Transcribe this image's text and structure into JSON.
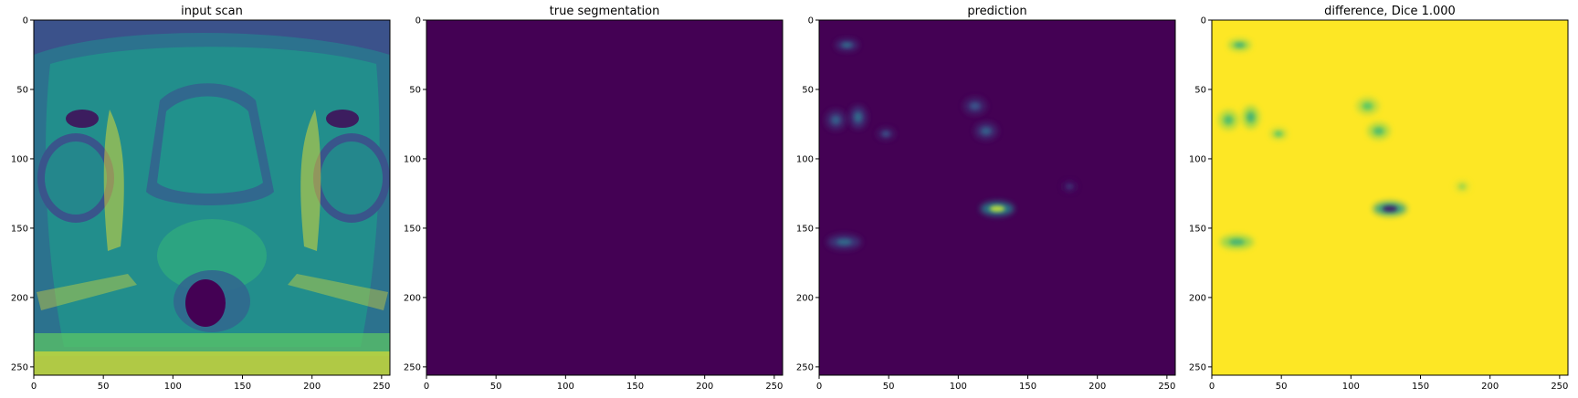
{
  "figure": {
    "background": "#ffffff",
    "colormap": "viridis",
    "colors": {
      "viridis_low": "#440154",
      "viridis_mid": "#21918c",
      "viridis_high": "#fde725"
    }
  },
  "chart_data": [
    {
      "type": "heatmap",
      "title": "input scan",
      "xlabel": "",
      "ylabel": "",
      "xlim": [
        0,
        256
      ],
      "ylim": [
        256,
        0
      ],
      "x_ticks": [
        0,
        50,
        100,
        150,
        200,
        250
      ],
      "y_ticks": [
        0,
        50,
        100,
        150,
        200,
        250
      ],
      "content": "MRI scan image"
    },
    {
      "type": "heatmap",
      "title": "true segmentation",
      "xlabel": "",
      "ylabel": "",
      "xlim": [
        0,
        256
      ],
      "ylim": [
        256,
        0
      ],
      "x_ticks": [
        0,
        50,
        100,
        150,
        200,
        250
      ],
      "y_ticks": [
        0,
        50,
        100,
        150,
        200,
        250
      ],
      "content": "uniform"
    },
    {
      "type": "heatmap",
      "title": "prediction",
      "xlabel": "",
      "ylabel": "",
      "xlim": [
        0,
        256
      ],
      "ylim": [
        256,
        0
      ],
      "x_ticks": [
        0,
        50,
        100,
        150,
        200,
        250
      ],
      "y_ticks": [
        0,
        50,
        100,
        150,
        200,
        250
      ],
      "content": "sparse activations",
      "hotspots": [
        {
          "x": 20,
          "y": 18,
          "rx": 8,
          "ry": 4,
          "intensity": 0.35
        },
        {
          "x": 12,
          "y": 72,
          "rx": 7,
          "ry": 7,
          "intensity": 0.3
        },
        {
          "x": 28,
          "y": 70,
          "rx": 6,
          "ry": 8,
          "intensity": 0.35
        },
        {
          "x": 48,
          "y": 82,
          "rx": 6,
          "ry": 4,
          "intensity": 0.25
        },
        {
          "x": 112,
          "y": 62,
          "rx": 8,
          "ry": 6,
          "intensity": 0.25
        },
        {
          "x": 120,
          "y": 80,
          "rx": 8,
          "ry": 6,
          "intensity": 0.3
        },
        {
          "x": 128,
          "y": 136,
          "rx": 12,
          "ry": 5,
          "intensity": 0.9
        },
        {
          "x": 18,
          "y": 160,
          "rx": 12,
          "ry": 5,
          "intensity": 0.35
        },
        {
          "x": 180,
          "y": 120,
          "rx": 5,
          "ry": 4,
          "intensity": 0.15
        }
      ]
    },
    {
      "type": "heatmap",
      "title": "difference, Dice 1.000",
      "xlabel": "",
      "ylabel": "",
      "xlim": [
        0,
        256
      ],
      "ylim": [
        256,
        0
      ],
      "x_ticks": [
        0,
        50,
        100,
        150,
        200,
        250
      ],
      "y_ticks": [
        0,
        50,
        100,
        150,
        200,
        250
      ],
      "content": "inverse of prediction"
    }
  ]
}
